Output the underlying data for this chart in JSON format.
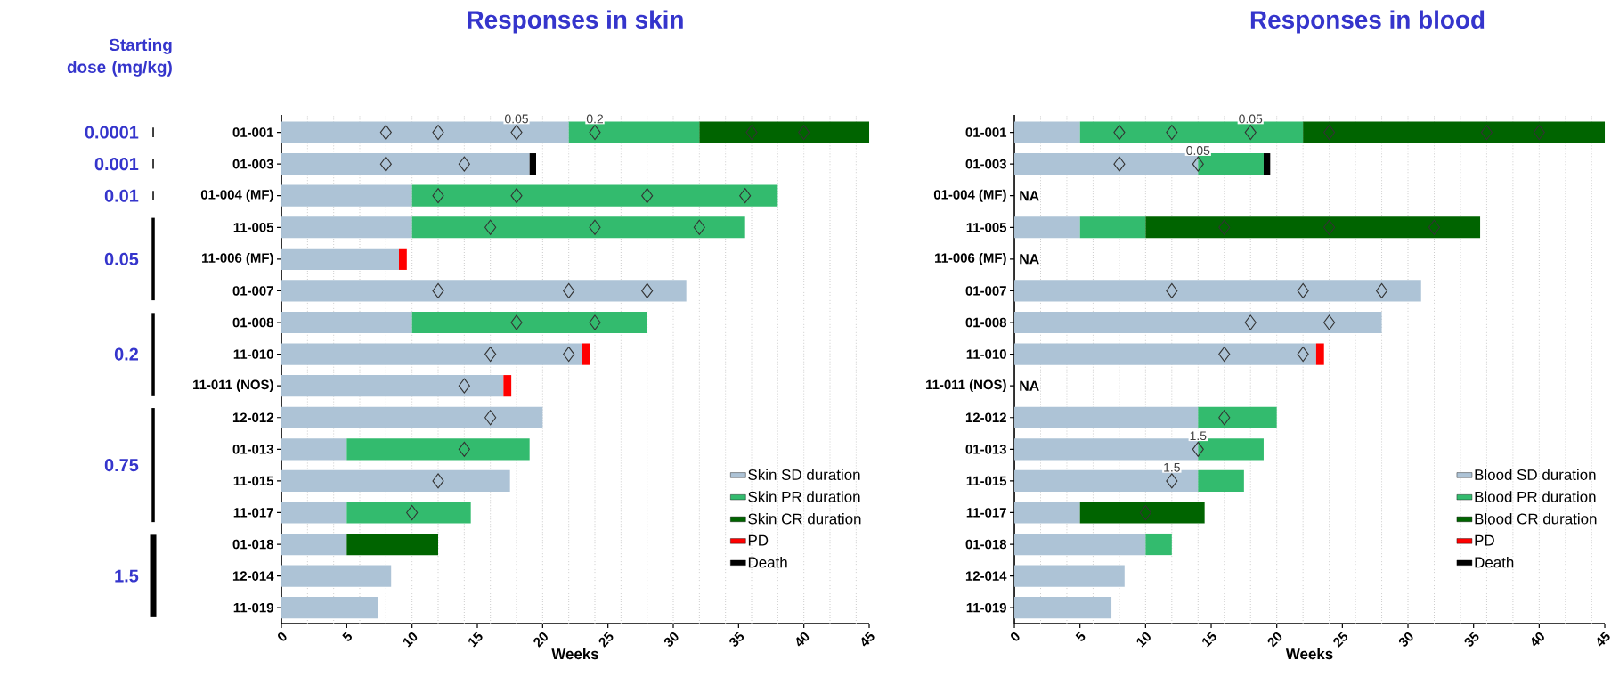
{
  "chart_data": [
    {
      "type": "bar",
      "orientation": "horizontal",
      "stacked": true,
      "title": "Responses in skin",
      "xlabel": "Weeks",
      "legend": "bottom right",
      "categories": [
        "01-001",
        "01-003",
        "01-004 (MF)",
        "11-005",
        "11-006 (MF)",
        "01-007",
        "01-008",
        "11-010",
        "11-011 (NOS)",
        "12-012",
        "01-013",
        "11-015",
        "11-017",
        "01-018",
        "12-014",
        "11-019"
      ],
      "xlim": [
        0,
        45
      ],
      "xticks": [
        0,
        5,
        10,
        15,
        20,
        25,
        30,
        35,
        40,
        45
      ],
      "series": [
        {
          "name": "Skin SD duration",
          "color": "#adc3d6",
          "values": [
            22,
            19,
            10,
            10,
            9,
            31,
            10,
            23,
            17,
            20,
            5,
            17.5,
            5,
            5,
            8.4,
            7.4
          ]
        },
        {
          "name": "Skin PR duration",
          "color": "#33bb6e",
          "values": [
            10,
            null,
            28,
            25.5,
            null,
            null,
            18,
            null,
            null,
            null,
            14,
            null,
            9.5,
            null,
            null,
            null
          ]
        },
        {
          "name": "Skin CR duration",
          "color": "#006400",
          "values": [
            13,
            null,
            null,
            null,
            null,
            null,
            null,
            null,
            null,
            null,
            null,
            null,
            null,
            7,
            null,
            null
          ]
        },
        {
          "name": "PD",
          "color": "#ff0000",
          "values": [
            null,
            null,
            null,
            null,
            0.6,
            null,
            null,
            0.6,
            0.6,
            null,
            null,
            null,
            null,
            null,
            null,
            null
          ]
        },
        {
          "name": "Death",
          "color": "#000000",
          "values": [
            null,
            0.5,
            null,
            null,
            null,
            null,
            null,
            null,
            null,
            null,
            null,
            null,
            null,
            null,
            null,
            null
          ]
        },
        {
          "type": "scatter",
          "marker": "diamond",
          "color": "#333333",
          "values": [
            8,
            8,
            12,
            16,
            null,
            12,
            18,
            16,
            14,
            16,
            14,
            12,
            10,
            null,
            null,
            null
          ]
        },
        {
          "type": "scatter",
          "marker": "diamond",
          "color": "#333333",
          "values": [
            12,
            14,
            18,
            24,
            null,
            22,
            24,
            22,
            null,
            null,
            null,
            null,
            null,
            null,
            null,
            null
          ]
        },
        {
          "type": "scatter",
          "marker": "diamond",
          "color": "#333333",
          "values": [
            18,
            null,
            28,
            32,
            null,
            28,
            null,
            null,
            null,
            null,
            null,
            null,
            null,
            null,
            null,
            null
          ]
        },
        {
          "type": "scatter",
          "marker": "diamond",
          "color": "#333333",
          "values": [
            24,
            null,
            35.5,
            null,
            null,
            null,
            null,
            null,
            null,
            null,
            null,
            null,
            null,
            null,
            null,
            null
          ]
        },
        {
          "type": "scatter",
          "marker": "diamond",
          "color": "#333333",
          "values": [
            36,
            null,
            null,
            null,
            null,
            null,
            null,
            null,
            null,
            null,
            null,
            null,
            null,
            null,
            null,
            null
          ]
        },
        {
          "type": "scatter",
          "marker": "diamond",
          "color": "#333333",
          "values": [
            40,
            null,
            null,
            null,
            null,
            null,
            null,
            null,
            null,
            null,
            null,
            null,
            null,
            null,
            null,
            null
          ]
        }
      ],
      "ref_lines": [
        {
          "axis": "x",
          "value": 2,
          "color": "#cccccc",
          "line_style": "dotted"
        },
        {
          "axis": "x",
          "value": 4,
          "color": "#cccccc",
          "line_style": "dotted"
        },
        {
          "axis": "x",
          "value": 6,
          "color": "#cccccc",
          "line_style": "dotted"
        },
        {
          "axis": "x",
          "value": 8,
          "color": "#cccccc",
          "line_style": "dotted"
        },
        {
          "axis": "x",
          "value": 10,
          "color": "#cccccc",
          "line_style": "dotted"
        },
        {
          "axis": "x",
          "value": 12,
          "color": "#cccccc",
          "line_style": "dotted"
        },
        {
          "axis": "x",
          "value": 14,
          "color": "#cccccc",
          "line_style": "dotted"
        },
        {
          "axis": "x",
          "value": 16,
          "color": "#cccccc",
          "line_style": "dotted"
        },
        {
          "axis": "x",
          "value": 18,
          "color": "#cccccc",
          "line_style": "dotted"
        },
        {
          "axis": "x",
          "value": 20,
          "color": "#cccccc",
          "line_style": "dotted"
        },
        {
          "axis": "x",
          "value": 22,
          "color": "#cccccc",
          "line_style": "dotted"
        },
        {
          "axis": "x",
          "value": 24,
          "color": "#cccccc",
          "line_style": "dotted"
        },
        {
          "axis": "x",
          "value": 26,
          "color": "#cccccc",
          "line_style": "dotted"
        },
        {
          "axis": "x",
          "value": 28,
          "color": "#cccccc",
          "line_style": "dotted"
        },
        {
          "axis": "x",
          "value": 30,
          "color": "#cccccc",
          "line_style": "dotted"
        },
        {
          "axis": "x",
          "value": 32,
          "color": "#cccccc",
          "line_style": "dotted"
        },
        {
          "axis": "x",
          "value": 34,
          "color": "#cccccc",
          "line_style": "dotted"
        },
        {
          "axis": "x",
          "value": 36,
          "color": "#cccccc",
          "line_style": "dotted"
        },
        {
          "axis": "x",
          "value": 38,
          "color": "#cccccc",
          "line_style": "dotted"
        },
        {
          "axis": "x",
          "value": 40,
          "color": "#cccccc",
          "line_style": "dotted"
        },
        {
          "axis": "x",
          "value": 42,
          "color": "#cccccc",
          "line_style": "dotted"
        },
        {
          "axis": "x",
          "value": 44,
          "color": "#cccccc",
          "line_style": "dotted"
        }
      ],
      "annotations": [
        "Starting dose (mg/kg)",
        "0.0001",
        "0.001",
        "0.01",
        "0.05",
        "0.2",
        "0.75",
        "1.5",
        {
          "text": "0.05",
          "x": 18,
          "y": "01-001"
        },
        {
          "text": "0.2",
          "x": 24,
          "y": "01-001"
        }
      ]
    },
    {
      "type": "bar",
      "orientation": "horizontal",
      "stacked": true,
      "title": "Responses in blood",
      "xlabel": "Weeks",
      "legend": "bottom right",
      "categories": [
        "01-001",
        "01-003",
        "01-004 (MF)",
        "11-005",
        "11-006 (MF)",
        "01-007",
        "01-008",
        "11-010",
        "11-011 (NOS)",
        "12-012",
        "01-013",
        "11-015",
        "11-017",
        "01-018",
        "12-014",
        "11-019"
      ],
      "xlim": [
        0,
        45
      ],
      "xticks": [
        0,
        5,
        10,
        15,
        20,
        25,
        30,
        35,
        40,
        45
      ],
      "series": [
        {
          "name": "Blood SD duration",
          "color": "#adc3d6",
          "values": [
            5,
            14,
            null,
            5,
            null,
            31,
            28,
            23,
            null,
            14,
            14,
            14,
            5,
            10,
            8.4,
            7.4
          ]
        },
        {
          "name": "Blood PR duration",
          "color": "#33bb6e",
          "values": [
            17,
            5,
            null,
            5,
            null,
            null,
            null,
            null,
            null,
            6,
            5,
            3.5,
            null,
            2,
            null,
            null
          ]
        },
        {
          "name": "Blood CR duration",
          "color": "#006400",
          "values": [
            23,
            null,
            null,
            25.5,
            null,
            null,
            null,
            null,
            null,
            null,
            null,
            null,
            9.5,
            null,
            null,
            null
          ]
        },
        {
          "name": "PD",
          "color": "#ff0000",
          "values": [
            null,
            null,
            null,
            null,
            null,
            null,
            null,
            0.6,
            null,
            null,
            null,
            null,
            null,
            null,
            null,
            null
          ]
        },
        {
          "name": "Death",
          "color": "#000000",
          "values": [
            null,
            0.5,
            null,
            null,
            null,
            null,
            null,
            null,
            null,
            null,
            null,
            null,
            null,
            null,
            null,
            null
          ]
        },
        {
          "type": "scatter",
          "marker": "diamond",
          "color": "#333333",
          "values": [
            8,
            8,
            null,
            16,
            null,
            12,
            18,
            16,
            null,
            16,
            14,
            12,
            10,
            null,
            null,
            null
          ]
        },
        {
          "type": "scatter",
          "marker": "diamond",
          "color": "#333333",
          "values": [
            12,
            14,
            null,
            24,
            null,
            22,
            24,
            22,
            null,
            null,
            null,
            null,
            null,
            null,
            null,
            null
          ]
        },
        {
          "type": "scatter",
          "marker": "diamond",
          "color": "#333333",
          "values": [
            18,
            null,
            null,
            32,
            null,
            28,
            null,
            null,
            null,
            null,
            null,
            null,
            null,
            null,
            null,
            null
          ]
        },
        {
          "type": "scatter",
          "marker": "diamond",
          "color": "#333333",
          "values": [
            24,
            null,
            null,
            null,
            null,
            null,
            null,
            null,
            null,
            null,
            null,
            null,
            null,
            null,
            null,
            null
          ]
        },
        {
          "type": "scatter",
          "marker": "diamond",
          "color": "#333333",
          "values": [
            36,
            null,
            null,
            null,
            null,
            null,
            null,
            null,
            null,
            null,
            null,
            null,
            null,
            null,
            null,
            null
          ]
        },
        {
          "type": "scatter",
          "marker": "diamond",
          "color": "#333333",
          "values": [
            40,
            null,
            null,
            null,
            null,
            null,
            null,
            null,
            null,
            null,
            null,
            null,
            null,
            null,
            null,
            null
          ]
        }
      ],
      "ref_lines": [
        {
          "axis": "x",
          "value": 2,
          "color": "#cccccc",
          "line_style": "dotted"
        },
        {
          "axis": "x",
          "value": 4,
          "color": "#cccccc",
          "line_style": "dotted"
        },
        {
          "axis": "x",
          "value": 6,
          "color": "#cccccc",
          "line_style": "dotted"
        },
        {
          "axis": "x",
          "value": 8,
          "color": "#cccccc",
          "line_style": "dotted"
        },
        {
          "axis": "x",
          "value": 10,
          "color": "#cccccc",
          "line_style": "dotted"
        },
        {
          "axis": "x",
          "value": 12,
          "color": "#cccccc",
          "line_style": "dotted"
        },
        {
          "axis": "x",
          "value": 14,
          "color": "#cccccc",
          "line_style": "dotted"
        },
        {
          "axis": "x",
          "value": 16,
          "color": "#cccccc",
          "line_style": "dotted"
        },
        {
          "axis": "x",
          "value": 18,
          "color": "#cccccc",
          "line_style": "dotted"
        },
        {
          "axis": "x",
          "value": 20,
          "color": "#cccccc",
          "line_style": "dotted"
        },
        {
          "axis": "x",
          "value": 22,
          "color": "#cccccc",
          "line_style": "dotted"
        },
        {
          "axis": "x",
          "value": 24,
          "color": "#cccccc",
          "line_style": "dotted"
        },
        {
          "axis": "x",
          "value": 26,
          "color": "#cccccc",
          "line_style": "dotted"
        },
        {
          "axis": "x",
          "value": 28,
          "color": "#cccccc",
          "line_style": "dotted"
        },
        {
          "axis": "x",
          "value": 30,
          "color": "#cccccc",
          "line_style": "dotted"
        },
        {
          "axis": "x",
          "value": 32,
          "color": "#cccccc",
          "line_style": "dotted"
        },
        {
          "axis": "x",
          "value": 34,
          "color": "#cccccc",
          "line_style": "dotted"
        },
        {
          "axis": "x",
          "value": 36,
          "color": "#cccccc",
          "line_style": "dotted"
        },
        {
          "axis": "x",
          "value": 38,
          "color": "#cccccc",
          "line_style": "dotted"
        },
        {
          "axis": "x",
          "value": 40,
          "color": "#cccccc",
          "line_style": "dotted"
        },
        {
          "axis": "x",
          "value": 42,
          "color": "#cccccc",
          "line_style": "dotted"
        },
        {
          "axis": "x",
          "value": 44,
          "color": "#cccccc",
          "line_style": "dotted"
        }
      ],
      "annotations": [
        {
          "text": "0.05",
          "x": 18,
          "y": "01-001"
        },
        {
          "text": "0.05",
          "x": 14,
          "y": "01-003"
        },
        "NA",
        "NA",
        "NA",
        {
          "text": "1.5",
          "x": 14,
          "y": "01-013"
        },
        {
          "text": "1.5",
          "x": 12,
          "y": "11-015"
        }
      ]
    }
  ]
}
